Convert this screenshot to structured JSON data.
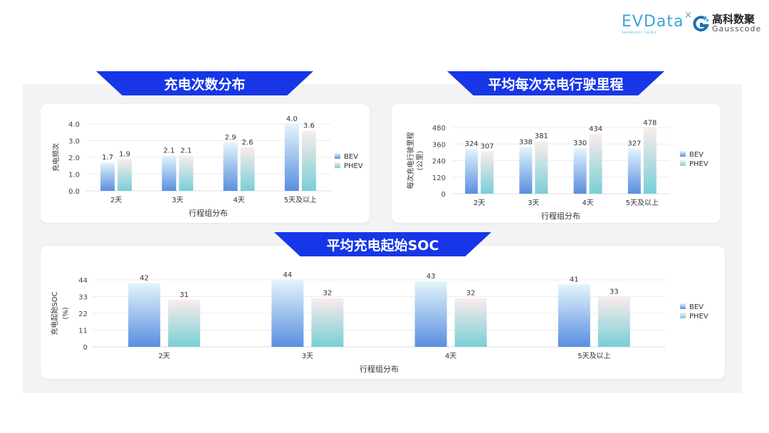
{
  "logos": {
    "evdata": "EVData",
    "evdata_sub": "SHANGHAI CHINA",
    "gauss_cn": "高科数聚",
    "gauss_en": "Gausscode"
  },
  "colors": {
    "banner": "#1636e8",
    "bev_top": "#e3f5fb",
    "bev_bottom": "#5a8ee0",
    "phev_top": "#fbeceb",
    "phev_bottom": "#78cfd6"
  },
  "chart_data": [
    {
      "type": "bar",
      "title": "充电次数分布",
      "categories": [
        "2天",
        "3天",
        "4天",
        "5天及以上"
      ],
      "series": [
        {
          "name": "BEV",
          "values": [
            1.7,
            2.1,
            2.9,
            4.0
          ]
        },
        {
          "name": "PHEV",
          "values": [
            1.9,
            2.1,
            2.6,
            3.6
          ]
        }
      ],
      "xlabel": "行程组分布",
      "ylabel": "充电频次",
      "ylim": [
        0,
        4
      ],
      "yticks": [
        "0.0",
        "1.0",
        "2.0",
        "3.0",
        "4.0"
      ],
      "decimals": 1,
      "grid": true,
      "legend": "right"
    },
    {
      "type": "bar",
      "title": "平均每次充电行驶里程",
      "categories": [
        "2天",
        "3天",
        "4天",
        "5天及以上"
      ],
      "series": [
        {
          "name": "BEV",
          "values": [
            324,
            338,
            330,
            327
          ]
        },
        {
          "name": "PHEV",
          "values": [
            307,
            381,
            434,
            478
          ]
        }
      ],
      "xlabel": "行程组分布",
      "ylabel": "每次充电行驶里程",
      "ylabel2": "(公里)",
      "ylim": [
        0,
        480
      ],
      "yticks": [
        "0",
        "120",
        "240",
        "360",
        "480"
      ],
      "decimals": 0,
      "grid": true,
      "legend": "right"
    },
    {
      "type": "bar",
      "title": "平均充电起始SOC",
      "categories": [
        "2天",
        "3天",
        "4天",
        "5天及以上"
      ],
      "series": [
        {
          "name": "BEV",
          "values": [
            42,
            44,
            43,
            41
          ]
        },
        {
          "name": "PHEV",
          "values": [
            31,
            32,
            32,
            33
          ]
        }
      ],
      "xlabel": "行程组分布",
      "ylabel": "充电起始SOC",
      "ylabel2": "(%)",
      "ylim": [
        0,
        44
      ],
      "yticks": [
        "0",
        "11",
        "22",
        "33",
        "44"
      ],
      "decimals": 0,
      "grid": true,
      "legend": "right"
    }
  ]
}
